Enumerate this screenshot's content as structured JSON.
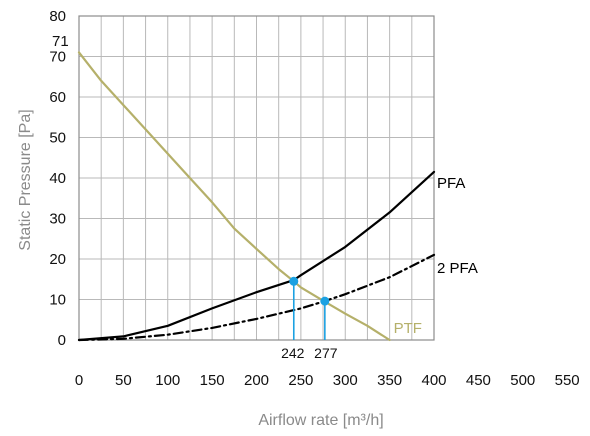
{
  "chart_data": {
    "type": "line",
    "xlabel": "Airflow rate [m³/h]",
    "ylabel": "Static Pressure [Pa]",
    "xlim": [
      0,
      400
    ],
    "ylim": [
      0,
      80
    ],
    "x_ticks": [
      "0",
      "50",
      "100",
      "150",
      "200",
      "250",
      "300",
      "350",
      "400",
      "450",
      "500",
      "550"
    ],
    "y_ticks": [
      "0",
      "10",
      "20",
      "30",
      "40",
      "50",
      "60",
      "70",
      "80"
    ],
    "grid": true,
    "series": [
      {
        "name": "PTF",
        "color": "#b5b06a",
        "style": "solid",
        "x": [
          0,
          25,
          50,
          75,
          100,
          125,
          150,
          175,
          200,
          225,
          242,
          250,
          275,
          300,
          325,
          350
        ],
        "y": [
          71,
          64,
          58,
          52,
          46,
          40,
          34,
          27.5,
          22.5,
          17.5,
          14.5,
          13,
          9.7,
          6.5,
          3.5,
          0
        ]
      },
      {
        "name": "PFA",
        "color": "#000000",
        "style": "solid",
        "x": [
          0,
          50,
          100,
          150,
          200,
          242,
          250,
          300,
          350,
          400
        ],
        "y": [
          0,
          0.9,
          3.5,
          7.8,
          11.8,
          14.8,
          16,
          23,
          31.5,
          41.5
        ]
      },
      {
        "name": "2 PFA",
        "color": "#000000",
        "style": "dashdot",
        "x": [
          0,
          50,
          100,
          150,
          200,
          250,
          277,
          300,
          350,
          400
        ],
        "y": [
          0,
          0.3,
          1.3,
          3,
          5.2,
          7.8,
          9.6,
          11.3,
          15.5,
          21
        ]
      }
    ],
    "operating_points": [
      {
        "x": 242,
        "y": 14.5,
        "label": "242"
      },
      {
        "x": 277,
        "y": 9.6,
        "label": "277"
      }
    ],
    "annotations": [
      {
        "text": "71",
        "x": 0,
        "y": 71
      }
    ],
    "point_color": "#1ba1e2"
  }
}
